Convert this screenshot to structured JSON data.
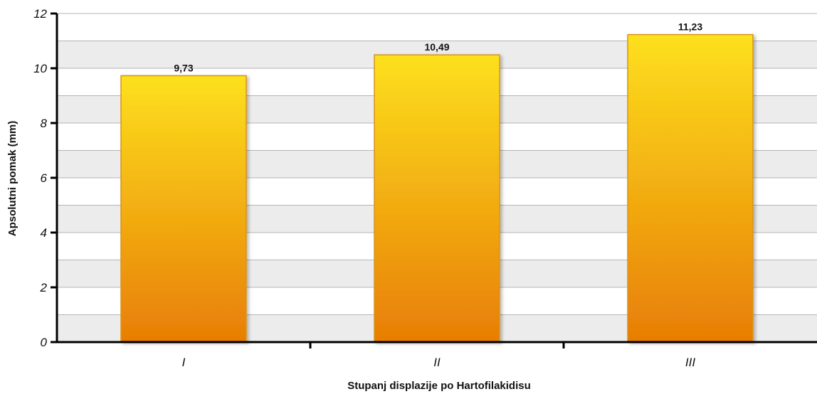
{
  "chart_data": {
    "type": "bar",
    "categories": [
      "I",
      "II",
      "III"
    ],
    "values": [
      9.73,
      10.49,
      11.23
    ],
    "value_labels": [
      "9,73",
      "10,49",
      "11,23"
    ],
    "title": "",
    "xlabel": "Stupanj displazije po Hartofilakidisu",
    "ylabel": "Apsolutni pomak (mm)",
    "ylim": [
      0,
      12
    ],
    "yticks": [
      0,
      2,
      4,
      6,
      8,
      10,
      12
    ],
    "grid": true,
    "legend": "none",
    "colors": {
      "bar_top": "#fde01e",
      "bar_bottom": "#e87d05",
      "bar_edge": "#d7941a",
      "band_shaded": "#ececec",
      "band_plain": "#ffffff",
      "gridline": "#b5b5b5",
      "axis": "#000000"
    }
  }
}
